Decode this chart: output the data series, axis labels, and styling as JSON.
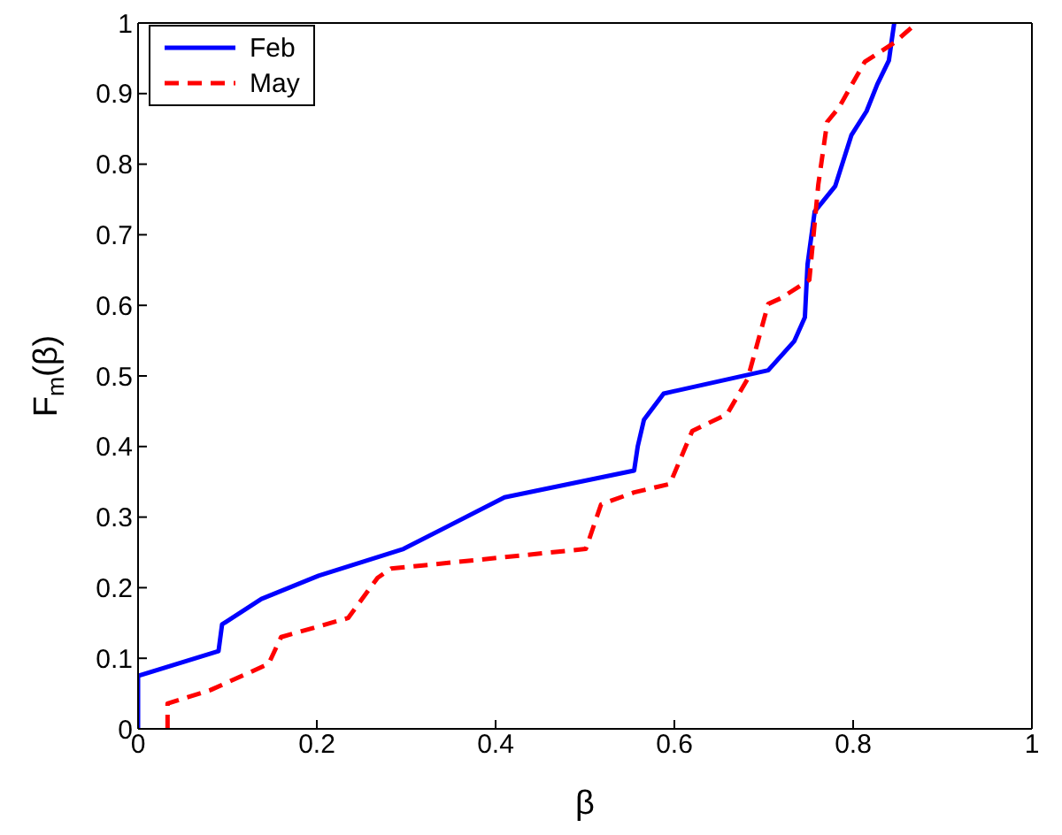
{
  "chart_data": {
    "type": "line",
    "xlabel": "β",
    "ylabel": "F$_{m}$(β)",
    "xlim": [
      0,
      1
    ],
    "ylim": [
      0,
      1
    ],
    "xticks": [
      0,
      0.2,
      0.4,
      0.6,
      0.8,
      1
    ],
    "yticks": [
      0,
      0.1,
      0.2,
      0.3,
      0.4,
      0.5,
      0.6,
      0.7,
      0.8,
      0.9,
      1
    ],
    "legend": "top left",
    "marker": "none",
    "series": [
      {
        "name": "Feb",
        "color": "#0000ff",
        "line_style": "solid",
        "x": [
          0,
          0,
          0.09,
          0.094,
          0.138,
          0.202,
          0.297,
          0.41,
          0.555,
          0.559,
          0.566,
          0.588,
          0.705,
          0.734,
          0.746,
          0.749,
          0.757,
          0.78,
          0.798,
          0.815,
          0.827,
          0.84,
          0.844,
          0.846
        ],
        "values": [
          0,
          0.075,
          0.11,
          0.148,
          0.184,
          0.217,
          0.255,
          0.328,
          0.366,
          0.4,
          0.438,
          0.475,
          0.508,
          0.549,
          0.583,
          0.658,
          0.733,
          0.769,
          0.841,
          0.875,
          0.913,
          0.947,
          0.983,
          1
        ]
      },
      {
        "name": "May",
        "color": "#ff0000",
        "line_style": "dashed",
        "x": [
          0.033,
          0.033,
          0.081,
          0.146,
          0.16,
          0.235,
          0.268,
          0.283,
          0.501,
          0.518,
          0.555,
          0.595,
          0.62,
          0.659,
          0.682,
          0.705,
          0.719,
          0.751,
          0.761,
          0.771,
          0.784,
          0.813,
          0.846,
          0.871
        ],
        "values": [
          0,
          0.036,
          0.055,
          0.092,
          0.13,
          0.157,
          0.214,
          0.227,
          0.255,
          0.318,
          0.335,
          0.347,
          0.422,
          0.446,
          0.496,
          0.602,
          0.61,
          0.636,
          0.771,
          0.86,
          0.88,
          0.945,
          0.972,
          1
        ]
      }
    ]
  }
}
